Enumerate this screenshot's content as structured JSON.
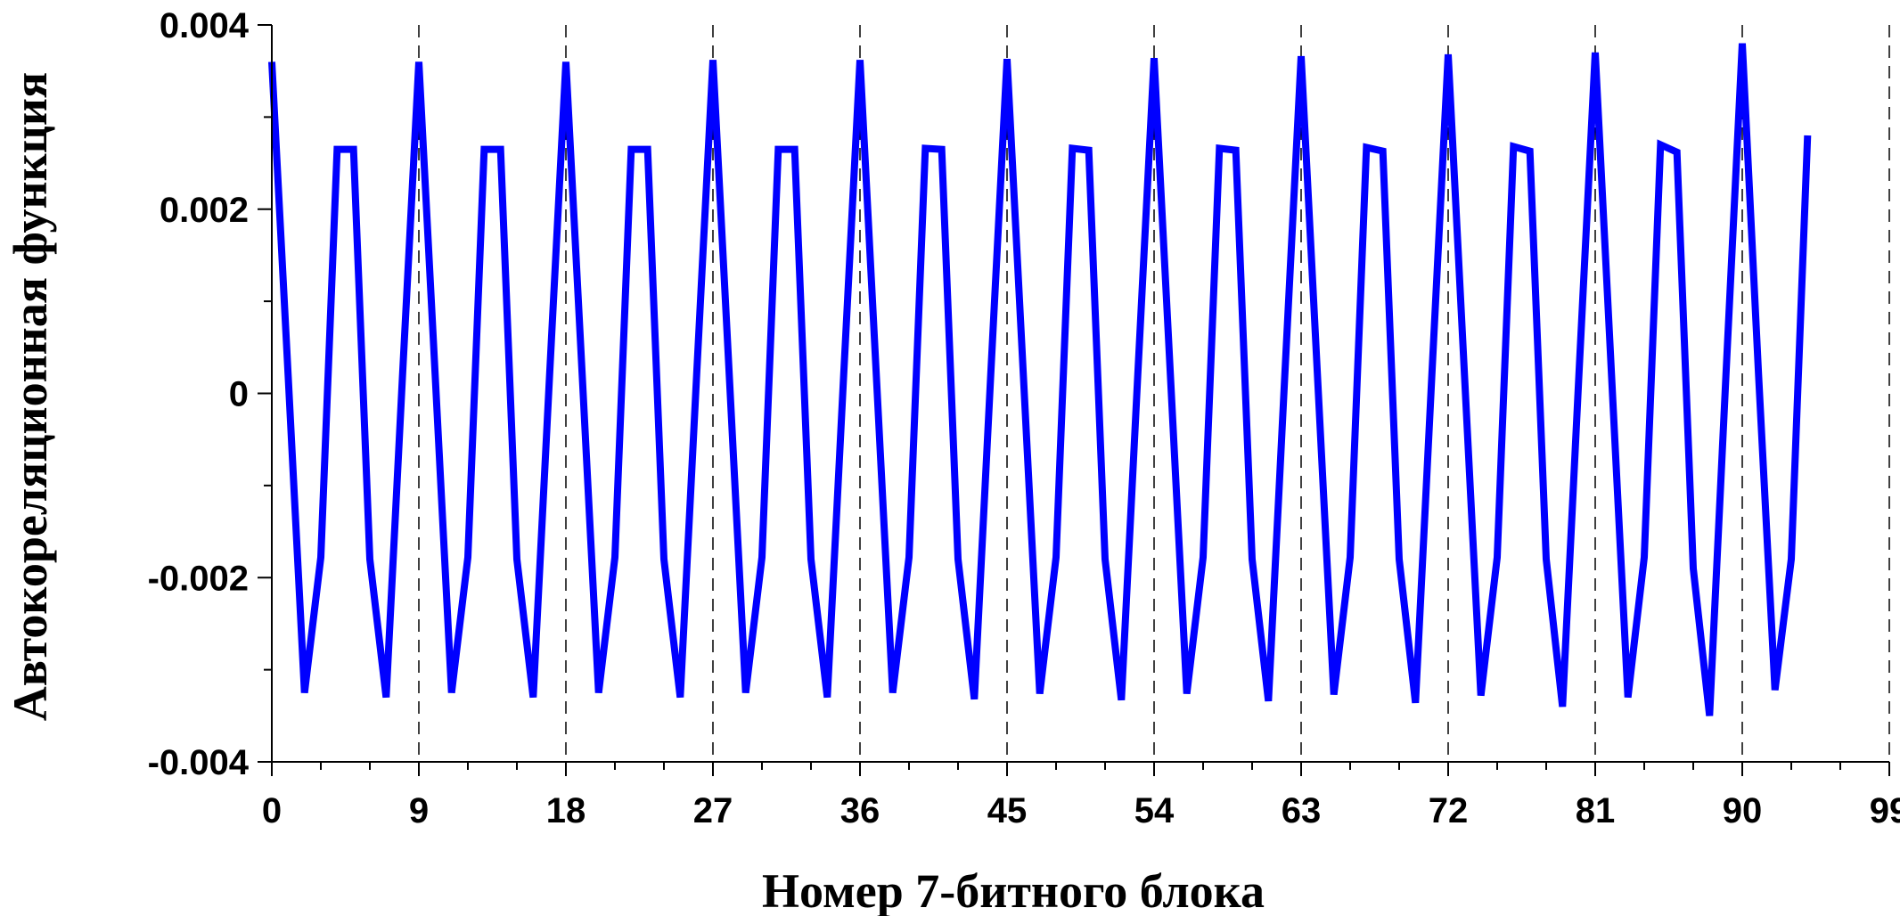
{
  "chart_data": {
    "type": "line",
    "title": "",
    "xlabel": "Номер 7-битного блока",
    "ylabel": "Автокореляционная функция",
    "xlim": [
      0,
      99
    ],
    "ylim": [
      -0.004,
      0.004
    ],
    "x_ticks": [
      0,
      9,
      18,
      27,
      36,
      45,
      54,
      63,
      72,
      81,
      90,
      99
    ],
    "x_minor_step": 3,
    "y_ticks": [
      -0.004,
      -0.002,
      0,
      0.002,
      0.004
    ],
    "y_tick_labels": [
      "-0.004",
      "-0.002",
      "0",
      "0.002",
      "0.004"
    ],
    "grid": "vertical dashed lines at major x ticks",
    "legend": "none",
    "colors": {
      "series": "#0000ff",
      "axis": "#000000",
      "grid": "#000000"
    },
    "series": [
      {
        "x": [
          0,
          1,
          2,
          3,
          4,
          5,
          6,
          7,
          8,
          9,
          10,
          11,
          12,
          13,
          14,
          15,
          16,
          17,
          18,
          19,
          20,
          21,
          22,
          23,
          24,
          25,
          26,
          27,
          28,
          29,
          30,
          31,
          32,
          33,
          34,
          35,
          36,
          37,
          38,
          39,
          40,
          41,
          42,
          43,
          44,
          45,
          46,
          47,
          48,
          49,
          50,
          51,
          52,
          53,
          54,
          55,
          56,
          57,
          58,
          59,
          60,
          61,
          62,
          63,
          64,
          65,
          66,
          67,
          68,
          69,
          70,
          71,
          72,
          73,
          74,
          75,
          76,
          77,
          78,
          79,
          80,
          81,
          82,
          83,
          84,
          85,
          86,
          87,
          88,
          89,
          90,
          91,
          92,
          93,
          94
        ],
        "y": [
          0.0036,
          0.0002,
          -0.00325,
          -0.00178,
          0.00265,
          0.00265,
          -0.0018,
          -0.0033,
          0.0002,
          0.0036,
          0.0002,
          -0.00325,
          -0.00178,
          0.00265,
          0.00265,
          -0.0018,
          -0.0033,
          0.0002,
          0.0036,
          0.0002,
          -0.00325,
          -0.00178,
          0.00265,
          0.00265,
          -0.0018,
          -0.0033,
          0.0002,
          0.00362,
          0.0002,
          -0.00325,
          -0.00178,
          0.00265,
          0.00265,
          -0.0018,
          -0.0033,
          0.0002,
          0.00362,
          0.0002,
          -0.00325,
          -0.00178,
          0.00266,
          0.00265,
          -0.0018,
          -0.00332,
          0.0002,
          0.00363,
          0.0002,
          -0.00326,
          -0.00178,
          0.00266,
          0.00264,
          -0.0018,
          -0.00333,
          0.0002,
          0.00364,
          0.0002,
          -0.00326,
          -0.00178,
          0.00266,
          0.00264,
          -0.0018,
          -0.00334,
          0.0002,
          0.00366,
          0.0002,
          -0.00327,
          -0.00178,
          0.00267,
          0.00263,
          -0.0018,
          -0.00336,
          0.0002,
          0.00368,
          0.0002,
          -0.00328,
          -0.00178,
          0.00268,
          0.00263,
          -0.0018,
          -0.0034,
          0.0002,
          0.0037,
          0.0002,
          -0.0033,
          -0.00178,
          0.0027,
          0.00262,
          -0.0019,
          -0.0035,
          0.0002,
          0.0038,
          0.0002,
          -0.00322,
          -0.0018,
          0.0028
        ]
      }
    ]
  }
}
